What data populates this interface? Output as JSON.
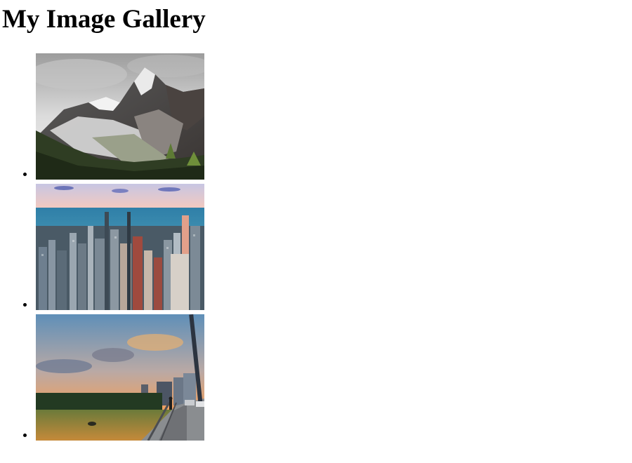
{
  "page": {
    "title": "My Image Gallery"
  },
  "gallery": {
    "items": [
      {
        "subject": "snowy mountain peaks above a forested valley",
        "icon": "mountain-photo"
      },
      {
        "subject": "aerial view of a city skyline beside a lake",
        "icon": "city-photo"
      },
      {
        "subject": "sunset over a lake seen from a bridge",
        "icon": "sunset-photo"
      }
    ]
  }
}
